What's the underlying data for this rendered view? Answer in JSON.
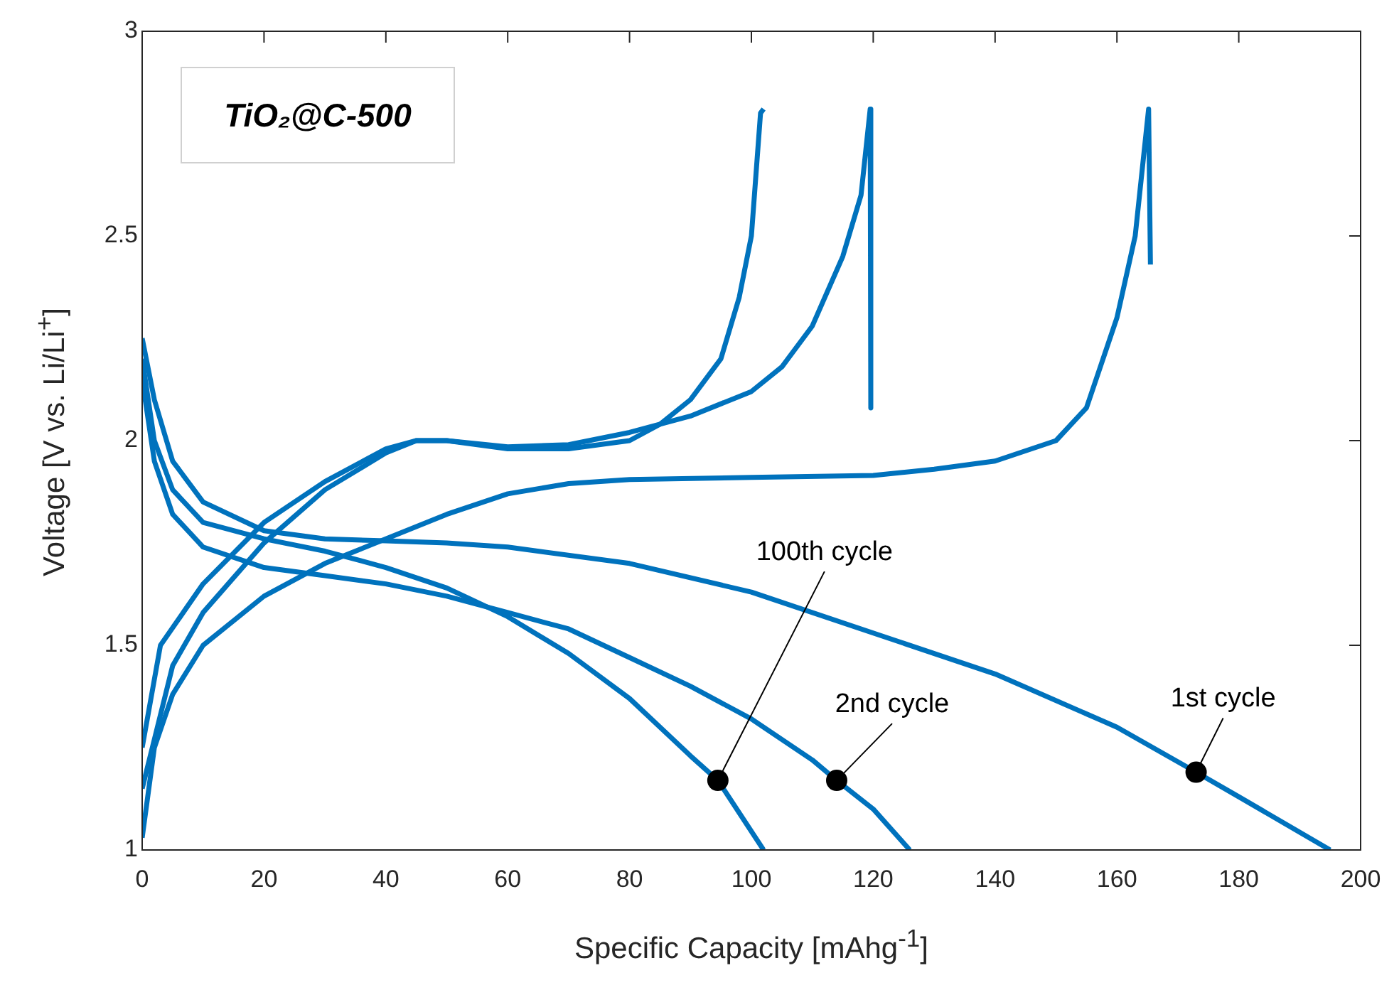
{
  "chart_data": {
    "type": "line",
    "title": "TiO₂@C-500",
    "xlabel": "Specific Capacity [mAhg$^{-1}$]",
    "ylabel": "Voltage [V vs. Li/Li$^{+}$]",
    "xlim": [
      0,
      200
    ],
    "xticks": [
      0,
      20,
      40,
      60,
      80,
      100,
      120,
      140,
      160,
      180,
      200
    ],
    "ylim": [
      1,
      3
    ],
    "yticks": [
      1,
      1.5,
      2,
      2.5,
      3
    ],
    "grid": false,
    "legend": false,
    "series": [
      {
        "color": "#0072bd",
        "x": [
          0,
          2,
          5,
          10,
          20,
          30,
          40,
          50,
          60,
          80,
          100,
          120,
          140,
          160,
          173,
          180,
          195
        ],
        "values": [
          2.25,
          2.1,
          1.95,
          1.85,
          1.78,
          1.76,
          1.755,
          1.75,
          1.74,
          1.7,
          1.63,
          1.53,
          1.43,
          1.3,
          1.19,
          1.13,
          1.0
        ]
      },
      {
        "color": "#0072bd",
        "x": [
          0,
          2,
          5,
          10,
          20,
          30,
          40,
          50,
          60,
          70,
          80,
          90,
          100,
          110,
          114,
          120,
          126
        ],
        "values": [
          2.15,
          1.95,
          1.82,
          1.74,
          1.69,
          1.67,
          1.65,
          1.62,
          1.58,
          1.54,
          1.47,
          1.4,
          1.32,
          1.22,
          1.17,
          1.1,
          1.0
        ]
      },
      {
        "color": "#0072bd",
        "x": [
          0,
          2,
          5,
          10,
          20,
          30,
          40,
          50,
          60,
          70,
          80,
          90,
          94.5,
          102
        ],
        "values": [
          2.2,
          2.0,
          1.88,
          1.8,
          1.76,
          1.73,
          1.69,
          1.64,
          1.57,
          1.48,
          1.37,
          1.23,
          1.17,
          1.0
        ]
      },
      {
        "color": "#0072bd",
        "x": [
          0,
          2,
          5,
          10,
          20,
          30,
          40,
          50,
          60,
          70,
          80,
          100,
          120,
          130,
          140,
          150,
          155,
          160,
          163,
          165.2,
          165.5
        ],
        "values": [
          1.03,
          1.25,
          1.38,
          1.5,
          1.62,
          1.7,
          1.76,
          1.82,
          1.87,
          1.895,
          1.905,
          1.91,
          1.915,
          1.93,
          1.95,
          2.0,
          2.08,
          2.3,
          2.5,
          2.81,
          2.43
        ]
      },
      {
        "color": "#0072bd",
        "x": [
          0,
          5,
          10,
          20,
          30,
          40,
          45,
          50,
          60,
          70,
          80,
          90,
          100,
          105,
          110,
          115,
          118,
          119.5,
          119.6
        ],
        "values": [
          1.15,
          1.45,
          1.58,
          1.75,
          1.88,
          1.97,
          2.0,
          2.0,
          1.985,
          1.99,
          2.02,
          2.06,
          2.12,
          2.18,
          2.28,
          2.45,
          2.6,
          2.81,
          2.08
        ]
      },
      {
        "color": "#0072bd",
        "x": [
          0,
          3,
          10,
          20,
          30,
          40,
          45,
          50,
          60,
          70,
          80,
          85,
          90,
          95,
          98,
          100,
          101.5,
          102
        ],
        "values": [
          1.25,
          1.5,
          1.65,
          1.8,
          1.9,
          1.98,
          2.0,
          2.0,
          1.98,
          1.98,
          2.0,
          2.04,
          2.1,
          2.2,
          2.35,
          2.5,
          2.8,
          2.81
        ]
      }
    ],
    "annotations": [
      {
        "text": "1st cycle",
        "x": 173,
        "y": 1.19
      },
      {
        "text": "2nd cycle",
        "x": 114,
        "y": 1.17
      },
      {
        "text": "100th cycle",
        "x": 94.5,
        "y": 1.17
      }
    ]
  }
}
